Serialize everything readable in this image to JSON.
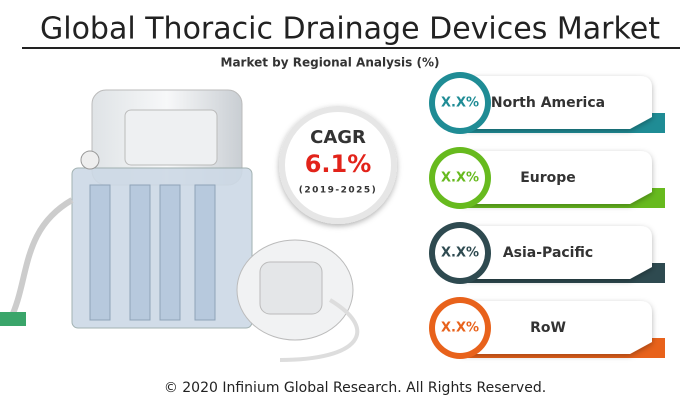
{
  "header": {
    "title": "Global Thoracic Drainage Devices Market",
    "subtitle": "Market by Regional Analysis (%)"
  },
  "cagr": {
    "label": "CAGR",
    "value": "6.1%",
    "period": "(2019-2025)"
  },
  "regions": [
    {
      "value": "X.X%",
      "name": "North America"
    },
    {
      "value": "X.X%",
      "name": "Europe"
    },
    {
      "value": "X.X%",
      "name": "Asia-Pacific"
    },
    {
      "value": "X.X%",
      "name": "RoW"
    }
  ],
  "footer": "© 2020 Infinium Global Research. All Rights Reserved."
}
